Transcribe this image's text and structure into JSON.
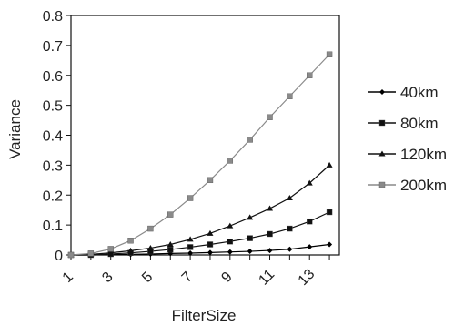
{
  "chart_data": {
    "type": "line",
    "title": "",
    "xlabel": "FilterSize",
    "ylabel": "Variance",
    "ylim": [
      0,
      0.8
    ],
    "yticks": [
      "0",
      "0.1",
      "0.2",
      "0.3",
      "0.4",
      "0.5",
      "0.6",
      "0.7",
      "0.8"
    ],
    "xticks": [
      "1",
      "3",
      "5",
      "7",
      "9",
      "11",
      "13"
    ],
    "grid": false,
    "legend_position": "right",
    "x": [
      1,
      2,
      3,
      4,
      5,
      6,
      7,
      8,
      9,
      10,
      11,
      12,
      13,
      14
    ],
    "series": [
      {
        "name": "40km",
        "color": "#000000",
        "marker": "diamond",
        "values": [
          0,
          0,
          0.001,
          0.002,
          0.003,
          0.005,
          0.006,
          0.008,
          0.01,
          0.012,
          0.015,
          0.019,
          0.027,
          0.035
        ]
      },
      {
        "name": "80km",
        "color": "#111111",
        "marker": "square",
        "values": [
          0,
          0,
          0.003,
          0.007,
          0.012,
          0.018,
          0.026,
          0.035,
          0.045,
          0.056,
          0.07,
          0.088,
          0.112,
          0.143
        ]
      },
      {
        "name": "120km",
        "color": "#111111",
        "marker": "triangle",
        "values": [
          0,
          0.002,
          0.007,
          0.014,
          0.023,
          0.035,
          0.052,
          0.072,
          0.097,
          0.125,
          0.155,
          0.19,
          0.24,
          0.3
        ]
      },
      {
        "name": "200km",
        "color": "#8a8a8a",
        "marker": "square",
        "values": [
          0,
          0.005,
          0.02,
          0.048,
          0.088,
          0.135,
          0.19,
          0.25,
          0.315,
          0.385,
          0.46,
          0.53,
          0.6,
          0.67
        ]
      }
    ]
  }
}
